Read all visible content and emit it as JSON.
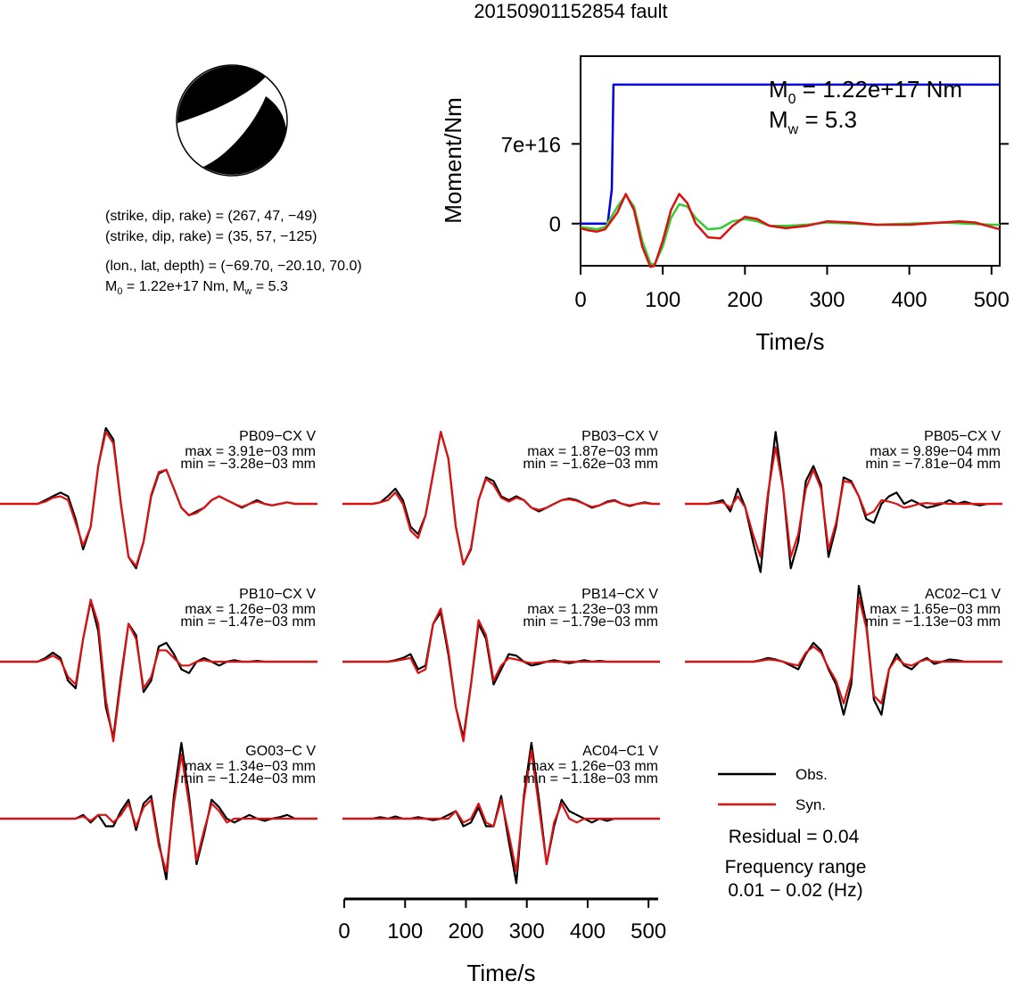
{
  "title": "20150901152854 fault",
  "beachball": {
    "compression_color": "#000000",
    "dilatation_color": "#ffffff"
  },
  "source_params": {
    "np1": "(strike, dip, rake) = (267, 47, −49)",
    "np2": "(strike, dip, rake) = (35, 57, −125)",
    "location": "(lon., lat, depth) = (−69.70, −20.10, 70.0)",
    "moment_prefix": "M",
    "moment_sub": "0",
    "moment_value": " = 1.22e+17 Nm, M",
    "mw_sub": "w",
    "mw_value": " = 5.3"
  },
  "legend": {
    "obs_label": "Obs.",
    "syn_label": "Syn.",
    "residual": "Residual = 0.04",
    "freq_title": "Frequency range",
    "freq_value": "0.01 − 0.02 (Hz)"
  },
  "colors": {
    "obs": "#000000",
    "syn": "#dd1111",
    "moment": "#0000dd",
    "stf_green": "#33cc33",
    "stf_red": "#dd1111"
  },
  "chart_data": [
    {
      "type": "line",
      "ylabel": "Moment/Nm",
      "xlabel": "Time/s",
      "xlim": [
        0,
        510
      ],
      "ylim": [
        -3.7e+16,
        1.47e+17
      ],
      "x_ticks": [
        0,
        100,
        200,
        300,
        400,
        500
      ],
      "y_ticks": [
        {
          "value": 0,
          "label": "0"
        },
        {
          "value": 7e+16,
          "label": "7e+16"
        }
      ],
      "annotation_m0": {
        "prefix": "M",
        "sub": "0",
        "value": " = 1.22e+17 Nm"
      },
      "annotation_mw": {
        "prefix": "M",
        "sub": "w",
        "value": " = 5.3"
      },
      "series": [
        {
          "x": [
            0,
            33,
            38,
            40,
            510
          ],
          "y": [
            0,
            0,
            3e+16,
            1.22e+17,
            1.22e+17
          ]
        },
        {
          "x": [
            0,
            10,
            20,
            30,
            45,
            55,
            65,
            75,
            85,
            90,
            100,
            110,
            120,
            130,
            140,
            155,
            170,
            185,
            200,
            215,
            230,
            250,
            275,
            300,
            330,
            360,
            400,
            440,
            470,
            500,
            510
          ],
          "y": [
            -3000000000000000.0,
            -4000000000000000.0,
            -5000000000000000.0,
            -3000000000000000.0,
            1.5e+16,
            2.5e+16,
            1.5e+16,
            -1.5e+16,
            -3.5e+16,
            -3.6e+16,
            -2e+16,
            5000000000000000.0,
            1.7e+16,
            1.5e+16,
            5000000000000000.0,
            -5000000000000000.0,
            -4000000000000000.0,
            2000000000000000.0,
            4000000000000000.0,
            2000000000000000.0,
            -2000000000000000.0,
            -2000000000000000.0,
            -1000000000000000.0,
            1000000000000000.0,
            0,
            -1000000000000000.0,
            0,
            1000000000000000.0,
            0,
            -1000000000000000.0,
            -1000000000000000.0
          ]
        },
        {
          "x": [
            0,
            10,
            20,
            30,
            45,
            55,
            65,
            75,
            85,
            90,
            100,
            110,
            120,
            130,
            140,
            155,
            170,
            185,
            200,
            215,
            230,
            250,
            275,
            300,
            330,
            360,
            400,
            440,
            460,
            480,
            500,
            510
          ],
          "y": [
            -4000000000000000.0,
            -6000000000000000.0,
            -7000000000000000.0,
            -5000000000000000.0,
            1e+16,
            2.6e+16,
            1.2e+16,
            -2e+16,
            -3.8e+16,
            -3.7e+16,
            -1.5e+16,
            1.2e+16,
            2.6e+16,
            1.8e+16,
            0,
            -1.2e+16,
            -1.3e+16,
            -2000000000000000.0,
            6000000000000000.0,
            4000000000000000.0,
            -2000000000000000.0,
            -4000000000000000.0,
            -2000000000000000.0,
            2000000000000000.0,
            1000000000000000.0,
            -1000000000000000.0,
            -1000000000000000.0,
            1000000000000000.0,
            2000000000000000.0,
            1000000000000000.0,
            -3000000000000000.0,
            -5000000000000000.0
          ]
        }
      ]
    },
    {
      "type": "line",
      "station": "PB09−CX V",
      "max": "max = 3.91e−03 mm",
      "min": "min = −3.28e−03 mm",
      "series": [
        {
          "name": "Obs.",
          "values": [
            0,
            0,
            0,
            0,
            0,
            0,
            0.05,
            0.1,
            0.15,
            0.1,
            -0.2,
            -0.6,
            -0.3,
            0.5,
            1.0,
            0.85,
            0,
            -0.7,
            -0.85,
            -0.5,
            0.1,
            0.4,
            0.45,
            0.2,
            -0.05,
            -0.15,
            -0.1,
            -0.05,
            0.05,
            0.1,
            0.05,
            0,
            -0.05,
            0,
            0.05,
            0,
            -0.02,
            0,
            0.02,
            0,
            0,
            0,
            0
          ]
        },
        {
          "name": "Syn.",
          "values": [
            0,
            0,
            0,
            0,
            0,
            0,
            0.03,
            0.08,
            0.1,
            0.05,
            -0.25,
            -0.55,
            -0.3,
            0.5,
            0.95,
            0.8,
            0,
            -0.7,
            -0.82,
            -0.5,
            0.12,
            0.42,
            0.45,
            0.2,
            -0.05,
            -0.15,
            -0.12,
            -0.05,
            0.05,
            0.1,
            0.05,
            0,
            -0.04,
            0,
            0.03,
            0,
            -0.02,
            0,
            0.02,
            0,
            0,
            0,
            0
          ]
        }
      ]
    },
    {
      "type": "line",
      "station": "PB03−CX V",
      "max": "max = 1.87e−03 mm",
      "min": "min = −1.62e−03 mm",
      "series": [
        {
          "name": "Obs.",
          "values": [
            0,
            0,
            0,
            0,
            0,
            0.02,
            0.1,
            0.2,
            0.05,
            -0.3,
            -0.4,
            -0.15,
            0.4,
            0.95,
            0.6,
            -0.3,
            -0.8,
            -0.6,
            0.05,
            0.35,
            0.3,
            0.1,
            0.05,
            0.1,
            0.05,
            -0.05,
            -0.1,
            -0.05,
            0,
            0.05,
            0.07,
            0.05,
            0,
            -0.05,
            -0.02,
            0.03,
            0.05,
            0,
            -0.03,
            0,
            0.02,
            0,
            0
          ]
        },
        {
          "name": "Syn.",
          "values": [
            0,
            0,
            0,
            0,
            0,
            0.02,
            0.05,
            0.15,
            0,
            -0.35,
            -0.45,
            -0.15,
            0.4,
            0.95,
            0.6,
            -0.3,
            -0.8,
            -0.58,
            0.05,
            0.33,
            0.25,
            0.08,
            0.03,
            0.08,
            0.05,
            -0.05,
            -0.08,
            -0.05,
            0,
            0.05,
            0.06,
            0.04,
            0,
            -0.04,
            -0.02,
            0.02,
            0.04,
            0,
            -0.02,
            0,
            0.01,
            0,
            0
          ]
        }
      ]
    },
    {
      "type": "line",
      "station": "PB05−CX V",
      "max": "max = 9.89e−04 mm",
      "min": "min = −7.81e−04 mm",
      "series": [
        {
          "name": "Obs.",
          "values": [
            0,
            0,
            0,
            0,
            0.02,
            0.05,
            -0.1,
            0.2,
            -0.05,
            -0.5,
            -0.9,
            0.1,
            0.95,
            0.2,
            -0.85,
            -0.5,
            0.3,
            0.5,
            0.25,
            -0.7,
            -0.3,
            0.35,
            0.3,
            0.1,
            -0.2,
            -0.25,
            0,
            0.1,
            0.15,
            0,
            0.05,
            0,
            -0.05,
            -0.03,
            0,
            0.05,
            0,
            0.03,
            0,
            -0.02,
            0,
            0,
            0
          ]
        },
        {
          "name": "Syn.",
          "values": [
            0,
            0,
            0,
            0,
            0.01,
            0.02,
            -0.05,
            0.1,
            -0.05,
            -0.4,
            -0.7,
            0.15,
            0.75,
            0.2,
            -0.7,
            -0.4,
            0.2,
            0.45,
            0.2,
            -0.6,
            -0.25,
            0.3,
            0.28,
            0.1,
            -0.15,
            -0.1,
            0.05,
            0.03,
            0,
            -0.05,
            -0.03,
            0,
            0.01,
            0,
            0.01,
            0,
            0,
            0,
            0,
            0,
            0,
            0,
            0
          ]
        }
      ]
    },
    {
      "type": "line",
      "station": "PB10−CX V",
      "max": "max = 1.26e−03 mm",
      "min": "min = −1.47e−03 mm",
      "series": [
        {
          "name": "Obs.",
          "values": [
            0,
            0,
            0,
            0,
            0,
            0,
            0.05,
            0.12,
            0.05,
            -0.25,
            -0.35,
            0.3,
            0.8,
            0.4,
            -0.6,
            -1.0,
            -0.2,
            0.5,
            0.35,
            -0.4,
            -0.25,
            0.2,
            0.25,
            0.1,
            -0.1,
            -0.15,
            0,
            0.05,
            0,
            -0.05,
            0,
            0.02,
            0,
            0,
            0.01,
            0,
            0,
            0,
            0,
            0,
            0,
            0,
            0
          ]
        },
        {
          "name": "Syn.",
          "values": [
            0,
            0,
            0,
            0,
            0,
            0,
            0.03,
            0.08,
            0.02,
            -0.2,
            -0.3,
            0.3,
            0.82,
            0.5,
            -0.5,
            -1.05,
            -0.25,
            0.5,
            0.3,
            -0.35,
            -0.2,
            0.15,
            0.15,
            0.05,
            -0.05,
            -0.05,
            0,
            0.02,
            0,
            0,
            0,
            0,
            0,
            0,
            0,
            0,
            0,
            0,
            0,
            0,
            0,
            0,
            0
          ]
        }
      ]
    },
    {
      "type": "line",
      "station": "PB14−CX V",
      "max": "max = 1.23e−03 mm",
      "min": "min = −1.79e−03 mm",
      "series": [
        {
          "name": "Obs.",
          "values": [
            0,
            0,
            0,
            0,
            0,
            0,
            0,
            0.02,
            0.05,
            0.1,
            -0.1,
            -0.05,
            0.5,
            0.65,
            0.1,
            -0.6,
            -1.0,
            -0.3,
            0.5,
            0.3,
            -0.3,
            -0.1,
            0.1,
            0.08,
            0,
            -0.05,
            -0.03,
            0,
            0.02,
            0,
            -0.02,
            0,
            0.02,
            0,
            0.01,
            0,
            0,
            0,
            0,
            0,
            0,
            0,
            0
          ]
        },
        {
          "name": "Syn.",
          "values": [
            0,
            0,
            0,
            0,
            0,
            0,
            0,
            0.01,
            0.03,
            0.05,
            -0.15,
            -0.1,
            0.5,
            0.7,
            0.15,
            -0.6,
            -1.05,
            -0.3,
            0.55,
            0.35,
            -0.25,
            -0.05,
            0.05,
            0.03,
            0,
            -0.02,
            -0.01,
            0,
            0,
            0,
            0,
            0,
            0,
            0,
            0,
            0,
            0,
            0,
            0,
            0,
            0,
            0,
            0
          ]
        }
      ]
    },
    {
      "type": "line",
      "station": "AC02−C1 V",
      "max": "max = 1.65e−03 mm",
      "min": "min = −1.13e−03 mm",
      "series": [
        {
          "name": "Obs.",
          "values": [
            0,
            0,
            0,
            0,
            0,
            0,
            0,
            0,
            0,
            0,
            0.02,
            0.05,
            0.03,
            0,
            -0.05,
            -0.1,
            0.1,
            0.25,
            0.15,
            -0.1,
            -0.3,
            -0.7,
            -0.3,
            1.0,
            0.5,
            -0.5,
            -0.7,
            -0.1,
            0.1,
            -0.05,
            -0.1,
            0,
            0.05,
            -0.03,
            0,
            0.03,
            0.02,
            0,
            0,
            0,
            0,
            0,
            0
          ]
        },
        {
          "name": "Syn.",
          "values": [
            0,
            0,
            0,
            0,
            0,
            0,
            0,
            0,
            0,
            0,
            0.01,
            0.03,
            0.02,
            0,
            -0.03,
            -0.05,
            0.12,
            0.2,
            0.12,
            -0.08,
            -0.25,
            -0.55,
            -0.2,
            0.85,
            0.45,
            -0.45,
            -0.55,
            -0.1,
            0.05,
            -0.03,
            -0.05,
            0,
            0.03,
            0,
            0,
            0,
            0,
            0,
            0,
            0,
            0,
            0,
            0
          ]
        }
      ]
    },
    {
      "type": "line",
      "station": "GO03−C V",
      "max": "max = 1.34e−03 mm",
      "min": "min = −1.24e−03 mm",
      "series": [
        {
          "name": "Obs.",
          "values": [
            0,
            0,
            0,
            0,
            0,
            0,
            0,
            0,
            0,
            0,
            0,
            0.05,
            -0.05,
            0.05,
            -0.1,
            -0.1,
            0.1,
            0.25,
            -0.15,
            0.2,
            0.3,
            -0.3,
            -0.8,
            0.3,
            1.0,
            0.3,
            -0.6,
            -0.2,
            0.25,
            0.15,
            0,
            -0.05,
            0,
            0.05,
            0,
            -0.03,
            0,
            0.02,
            0.05,
            0,
            0,
            0,
            0
          ]
        },
        {
          "name": "Syn.",
          "values": [
            0,
            0,
            0,
            0,
            0,
            0,
            0,
            0,
            0,
            0,
            0,
            0.03,
            -0.03,
            0.05,
            0.05,
            -0.05,
            0.05,
            0.2,
            -0.1,
            0.15,
            0.25,
            -0.35,
            -0.7,
            0.2,
            0.85,
            0.2,
            -0.55,
            -0.15,
            0.2,
            0.1,
            -0.05,
            0,
            0,
            0,
            0,
            0,
            0,
            0,
            0,
            0,
            0,
            0,
            0
          ]
        }
      ]
    },
    {
      "type": "line",
      "station": "AC04−C1 V",
      "max": "max = 1.26e−03 mm",
      "min": "min = −1.18e−03 mm",
      "series": [
        {
          "name": "Obs.",
          "values": [
            0,
            0,
            0,
            0,
            0,
            0.02,
            0,
            0.03,
            0,
            0,
            0.02,
            0,
            -0.02,
            0,
            0.05,
            0.1,
            -0.1,
            -0.05,
            0.15,
            -0.1,
            -0.1,
            0.3,
            -0.3,
            -0.85,
            0.3,
            1.0,
            0.25,
            -0.6,
            -0.1,
            0.25,
            0.1,
            0.05,
            0,
            -0.05,
            0,
            -0.03,
            0,
            0,
            0,
            0,
            0,
            0,
            0
          ]
        },
        {
          "name": "Syn.",
          "values": [
            0,
            0,
            0,
            0,
            0,
            0,
            0,
            0,
            0,
            0,
            0,
            0,
            0,
            0,
            0,
            0.1,
            -0.05,
            0,
            0.2,
            -0.05,
            -0.1,
            0.25,
            -0.2,
            -0.7,
            0.25,
            0.9,
            0.15,
            -0.6,
            -0.05,
            0.2,
            0,
            -0.05,
            0,
            0,
            0,
            0,
            0,
            0,
            0,
            0,
            0,
            0,
            0
          ]
        }
      ]
    },
    {
      "type": "line",
      "xlabel": "Time/s",
      "xlim": [
        0,
        510
      ],
      "x_ticks": [
        0,
        100,
        200,
        300,
        400,
        500
      ]
    }
  ]
}
